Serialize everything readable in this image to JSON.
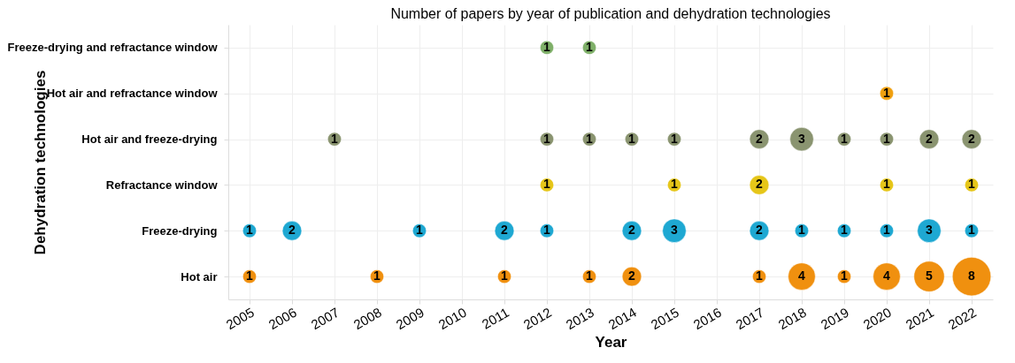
{
  "chart_data": {
    "type": "heatmap",
    "title": "Number of papers by year of publication and dehydration technologies",
    "xlabel": "Year",
    "ylabel": "Dehydration technologies",
    "categories": [
      "2005",
      "2006",
      "2007",
      "2008",
      "2009",
      "2010",
      "2011",
      "2012",
      "2013",
      "2014",
      "2015",
      "2016",
      "2017",
      "2018",
      "2019",
      "2020",
      "2021",
      "2022"
    ],
    "y_categories": [
      "Freeze-drying and refractance window",
      "Hot air and refractance window",
      "Hot air and freeze-drying",
      "Refractance window",
      "Freeze-drying",
      "Hot air"
    ],
    "grid": true,
    "data_labels": true,
    "colors": [
      "#7fb069",
      "#f0a010",
      "#8a9470",
      "#e6c619",
      "#1ea8d2",
      "#f0900f"
    ],
    "cells": [
      [
        null,
        null,
        null,
        null,
        null,
        null,
        null,
        1,
        1,
        null,
        null,
        null,
        null,
        null,
        null,
        null,
        null,
        null
      ],
      [
        null,
        null,
        null,
        null,
        null,
        null,
        null,
        null,
        null,
        null,
        null,
        null,
        null,
        null,
        null,
        1,
        null,
        null
      ],
      [
        null,
        null,
        1,
        null,
        null,
        null,
        null,
        1,
        1,
        1,
        1,
        null,
        2,
        3,
        1,
        1,
        2,
        2
      ],
      [
        null,
        null,
        null,
        null,
        null,
        null,
        null,
        1,
        null,
        null,
        1,
        null,
        2,
        null,
        null,
        1,
        null,
        1
      ],
      [
        1,
        2,
        null,
        null,
        1,
        null,
        2,
        1,
        null,
        2,
        3,
        null,
        2,
        1,
        1,
        1,
        3,
        1
      ],
      [
        1,
        null,
        null,
        1,
        null,
        null,
        1,
        null,
        1,
        2,
        null,
        null,
        1,
        4,
        1,
        4,
        5,
        8
      ]
    ]
  }
}
